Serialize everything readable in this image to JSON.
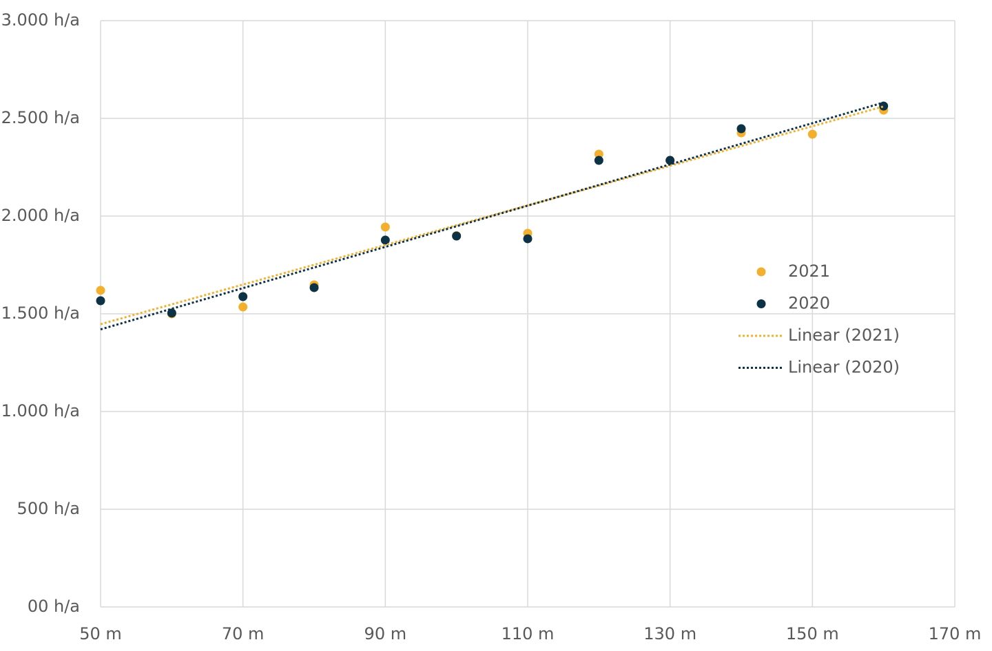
{
  "chart_data": {
    "type": "scatter",
    "x": [
      50,
      60,
      70,
      80,
      90,
      100,
      110,
      120,
      130,
      140,
      150,
      160
    ],
    "series": [
      {
        "name": "2021",
        "color": "#f2b02e",
        "values": [
          1620,
          1500,
          1535,
          1648,
          1944,
          1900,
          1912,
          2317,
          2285,
          2426,
          2419,
          2542
        ],
        "trendline_name": "Linear (2021)"
      },
      {
        "name": "2020",
        "color": "#0d3246",
        "values": [
          1567,
          1504,
          1588,
          1634,
          1877,
          1898,
          1884,
          2285,
          2285,
          2447,
          null,
          2563
        ],
        "trendline_name": "Linear (2020)"
      }
    ],
    "xlim": [
      50,
      170
    ],
    "xticks": [
      {
        "value": 50,
        "label": "50 m"
      },
      {
        "value": 70,
        "label": "70 m"
      },
      {
        "value": 90,
        "label": "90 m"
      },
      {
        "value": 110,
        "label": "110 m"
      },
      {
        "value": 130,
        "label": "130 m"
      },
      {
        "value": 150,
        "label": "150 m"
      },
      {
        "value": 170,
        "label": "170 m"
      }
    ],
    "ylim": [
      0,
      3000
    ],
    "yticks": [
      {
        "value": 0,
        "label": "00 h/a"
      },
      {
        "value": 500,
        "label": "500 h/a"
      },
      {
        "value": 1000,
        "label": "1.000 h/a"
      },
      {
        "value": 1500,
        "label": "1.500 h/a"
      },
      {
        "value": 2000,
        "label": "2.000 h/a"
      },
      {
        "value": 2500,
        "label": "2.500 h/a"
      },
      {
        "value": 3000,
        "label": "3.000 h/a"
      }
    ],
    "grid": true,
    "legend": "right"
  }
}
